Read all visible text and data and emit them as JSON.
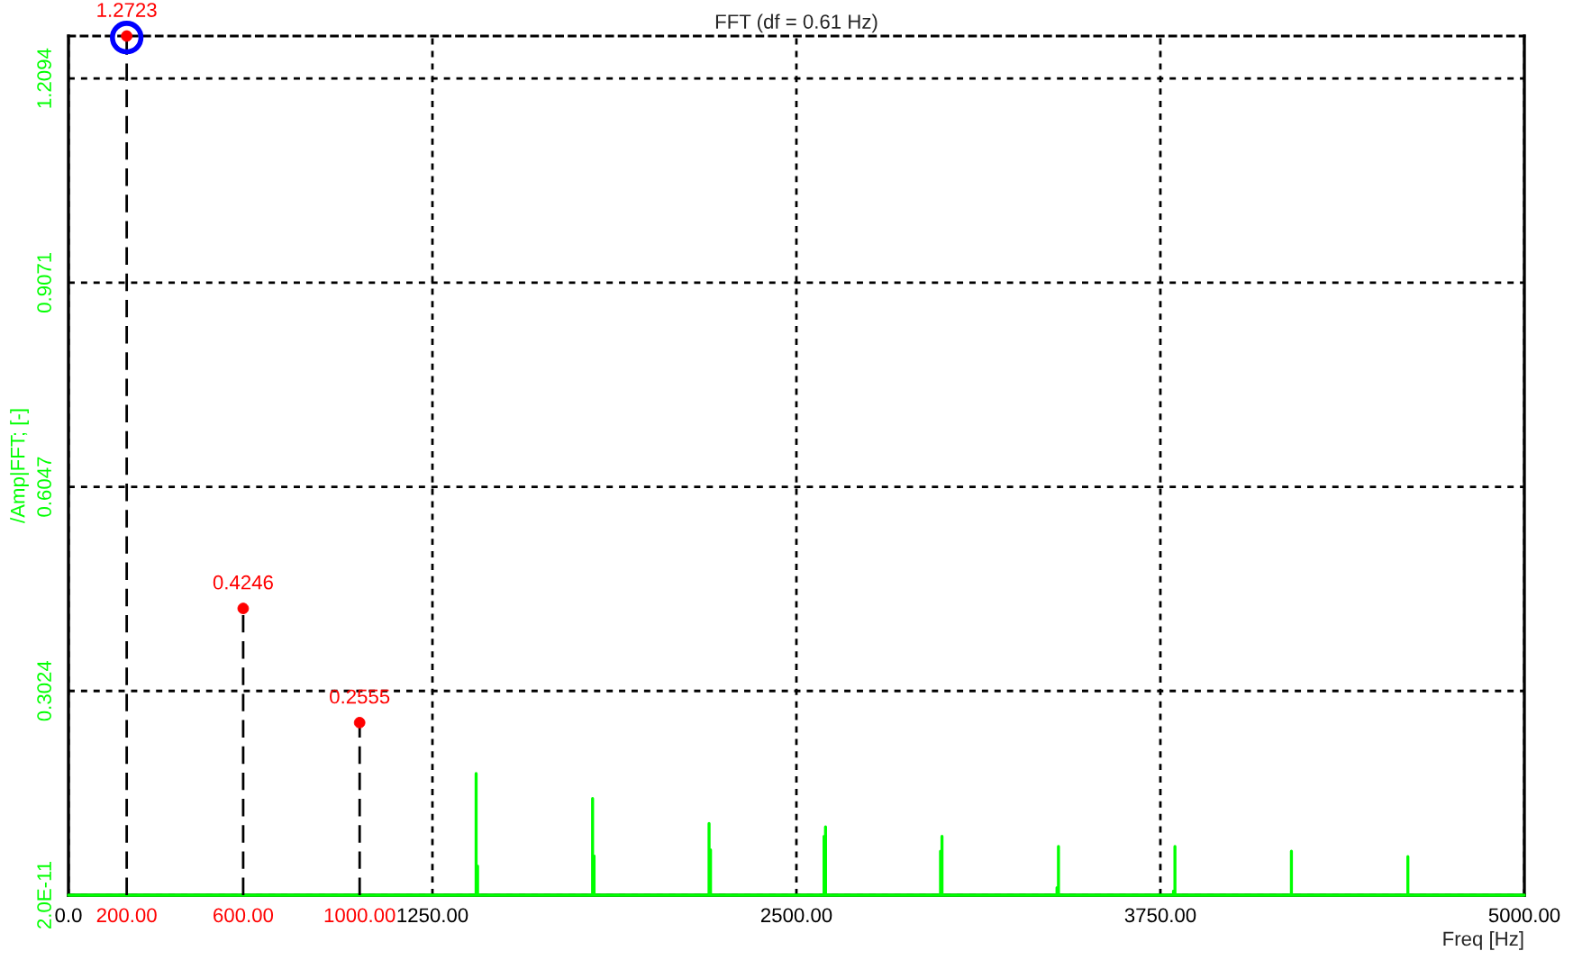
{
  "chart_data": {
    "type": "line",
    "title": "FFT (df = 0.61 Hz)",
    "xlabel": "Freq [Hz]",
    "ylabel": "/Amp|FFT; [-]",
    "xlim": [
      0,
      5000
    ],
    "xticks": [
      {
        "value": 0,
        "label": "0.0"
      },
      {
        "value": 200,
        "label": "200.00"
      },
      {
        "value": 600,
        "label": "600.00"
      },
      {
        "value": 1000,
        "label": "1000.00"
      },
      {
        "value": 1250,
        "label": "1250.00"
      },
      {
        "value": 2500,
        "label": "2500.00"
      },
      {
        "value": 3750,
        "label": "3750.00"
      },
      {
        "value": 5000,
        "label": "5000.00"
      }
    ],
    "ylim": [
      0,
      1.2723
    ],
    "yticks": [
      {
        "value": 2e-11,
        "label": "2.0E-11"
      },
      0.3024,
      0.6047,
      0.9071,
      1.2094
    ],
    "grid": true,
    "series": [
      {
        "color": "#00ff00",
        "marker": "none",
        "line_style": "solid",
        "x": [
          0,
          1400,
          1400,
          1400,
          1405,
          1405,
          1405,
          1800,
          1800,
          1800,
          1805,
          1805,
          1805,
          2200,
          2200,
          2200,
          2205,
          2205,
          2205,
          2595,
          2595,
          2595,
          2600,
          2600,
          2600,
          2995,
          2995,
          2995,
          3000,
          3000,
          3000,
          3395,
          3395,
          3395,
          3400,
          3400,
          3400,
          3795,
          3795,
          3795,
          3800,
          3800,
          3800,
          4200,
          4200,
          4200,
          4600,
          4600,
          4600,
          5000
        ],
        "values": [
          0,
          0,
          0.18,
          0,
          0,
          0.043,
          0,
          0,
          0.143,
          0,
          0,
          0.058,
          0,
          0,
          0.106,
          0,
          0,
          0.067,
          0,
          0,
          0.087,
          0,
          0,
          0.101,
          0,
          0,
          0.065,
          0,
          0,
          0.087,
          0,
          0,
          0.011,
          0,
          0,
          0.072,
          0,
          0,
          0.006,
          0,
          0,
          0.072,
          0,
          0,
          0.065,
          0,
          0,
          0.057,
          0,
          0
        ]
      },
      {
        "type": "lollipop",
        "color": "#ff0000",
        "marker": "circle",
        "line_style": "dashed",
        "x": [
          200,
          600,
          1000
        ],
        "values": [
          1.2723,
          0.4246,
          0.2555
        ],
        "value_labels": [
          "1.2723",
          "0.4246",
          "0.2555"
        ]
      },
      {
        "type": "scatter",
        "color": "#0000ff",
        "marker": "circle",
        "x": [
          200
        ],
        "values": [
          1.27
        ]
      }
    ]
  }
}
